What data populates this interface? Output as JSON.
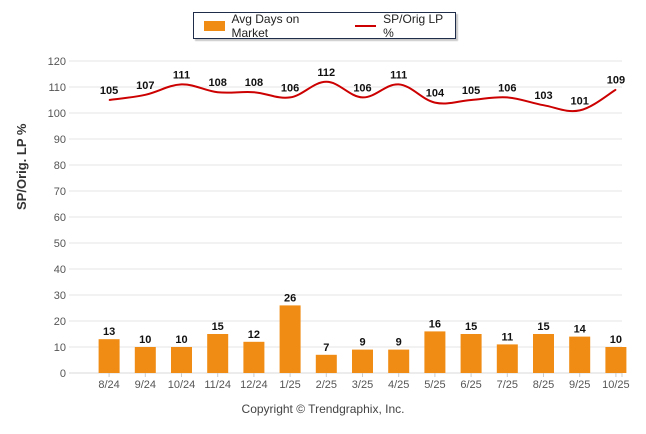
{
  "chart_data": {
    "type": "bar+line",
    "title": "",
    "categories": [
      "8/24",
      "9/24",
      "10/24",
      "11/24",
      "12/24",
      "1/25",
      "2/25",
      "3/25",
      "4/25",
      "5/25",
      "6/25",
      "7/25",
      "8/25",
      "9/25",
      "10/25"
    ],
    "series": [
      {
        "name": "Avg Days on Market",
        "type": "bar",
        "color": "#f08c14",
        "values": [
          13,
          10,
          10,
          15,
          12,
          26,
          7,
          9,
          9,
          16,
          15,
          11,
          15,
          14,
          10
        ]
      },
      {
        "name": "SP/Orig LP %",
        "type": "line",
        "color": "#cc0000",
        "values": [
          105,
          107,
          111,
          108,
          108,
          106,
          112,
          106,
          111,
          104,
          105,
          106,
          103,
          101,
          109
        ]
      }
    ],
    "xlabel": "",
    "ylabel": "SP/Orig. LP %",
    "ylim": [
      0,
      120
    ],
    "yticks": [
      0,
      10,
      20,
      30,
      40,
      50,
      60,
      70,
      80,
      90,
      100,
      110,
      120
    ],
    "grid": true,
    "legend_position": "top-center"
  },
  "legend": {
    "bar_label": "Avg Days on Market",
    "line_label": "SP/Orig LP %"
  },
  "footer": {
    "copyright": "Copyright © Trendgraphix, Inc."
  },
  "colors": {
    "bar": "#f08c14",
    "line": "#cc0000",
    "grid": "#e6e6e6",
    "legend_border": "#1f2d4a"
  }
}
